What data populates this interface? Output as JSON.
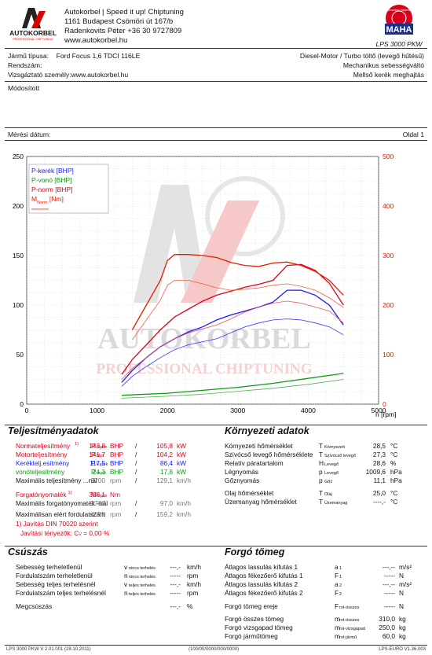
{
  "header": {
    "company_line1": "Autokorbel | Speed it up! Chiptuning",
    "company_line2": "1161 Budapest Csömöri út 167/b",
    "company_line3": "Radenkovits Péter +36 30 9727809",
    "company_line4": "www.autokorbel.hu",
    "logo_text": "AUTOKORBEL",
    "logo_sub": "PROFESSIONAL CHIPTUNING",
    "maha_ring": "Maschinenbau Haldenwang",
    "maha_text": "MAHA",
    "device": "LPS 3000 PKW"
  },
  "vehicle": {
    "type_label": "Jármű típusa:",
    "type_value": "Ford Focus 1,6 TDCI 116LE",
    "engine": "Diesel-Motor / Turbo töltő (levegő hűtésű)",
    "reg_label": "Rendszám:",
    "gearbox": "Mechanikus sebességváltó",
    "tester_label": "Vizsgáztató személy:",
    "tester_value": "www.autokorbel.hu",
    "drive": "Mellső kerék meghajtás",
    "modified": "Módosított",
    "date_label": "Mérési dátum:",
    "page": "Oldal 1"
  },
  "chart_data": {
    "type": "line",
    "x_unit": "n [rpm]",
    "xlim": [
      0,
      5000
    ],
    "ylim_left": [
      0,
      250
    ],
    "ylim_right": [
      0,
      500
    ],
    "x_ticks": [
      "0",
      "1000",
      "2000",
      "3000",
      "4000",
      "5000"
    ],
    "y_left_ticks": [
      "0",
      "50",
      "100",
      "150",
      "200",
      "250"
    ],
    "y_right_ticks": [
      "0",
      "100",
      "200",
      "300",
      "400",
      "500"
    ],
    "legend": [
      "P-kerék [BHP]",
      "P-vonó [BHP]",
      "P-norm [BHP]",
      "M",
      "Norm",
      " [Nm]"
    ],
    "series": [
      {
        "name": "P-kerék",
        "axis": "left",
        "color": "#1a1aff",
        "x": [
          1350,
          1500,
          1700,
          1900,
          2100,
          2300,
          2500,
          2700,
          2900,
          3100,
          3300,
          3500,
          3700,
          3900,
          4100,
          4300,
          4500
        ],
        "y": [
          22,
          34,
          47,
          58,
          66,
          73,
          78,
          85,
          90,
          94,
          98,
          103,
          115,
          115,
          110,
          100,
          80
        ]
      },
      {
        "name": "P-kerék run2",
        "axis": "left",
        "color": "#3333ff",
        "x": [
          1350,
          1500,
          1700,
          1900,
          2100,
          2300,
          2500,
          2700,
          2900,
          3100,
          3300,
          3500,
          3700,
          3900,
          4100,
          4300,
          4500
        ],
        "y": [
          18,
          28,
          38,
          47,
          55,
          60,
          63,
          66,
          72,
          78,
          82,
          85,
          86,
          85,
          82,
          78,
          70
        ]
      },
      {
        "name": "P-vonó",
        "axis": "left",
        "color": "#119a11",
        "x": [
          1350,
          2000,
          2500,
          3000,
          3500,
          4000,
          4500
        ],
        "y": [
          9,
          11,
          14,
          17,
          21,
          26,
          31
        ]
      },
      {
        "name": "P-vonó run2",
        "axis": "left",
        "color": "#4caf4c",
        "x": [
          1350,
          2000,
          2500,
          3000,
          3500,
          4000,
          4500
        ],
        "y": [
          6,
          8,
          10,
          13,
          16,
          20,
          25
        ]
      },
      {
        "name": "P-norm",
        "axis": "left",
        "color": "#e0001b",
        "x": [
          1350,
          1500,
          1700,
          1900,
          2100,
          2300,
          2500,
          2700,
          2900,
          3100,
          3300,
          3500,
          3700,
          3900,
          4100,
          4300,
          4500
        ],
        "y": [
          30,
          45,
          60,
          75,
          88,
          96,
          104,
          110,
          114,
          118,
          121,
          125,
          140,
          141,
          135,
          122,
          100
        ]
      },
      {
        "name": "P-norm run2",
        "axis": "left",
        "color": "#ee5555",
        "x": [
          1350,
          1500,
          1700,
          1900,
          2100,
          2300,
          2500,
          2700,
          2900,
          3100,
          3300,
          3500,
          3700,
          3900,
          4100,
          4300,
          4500
        ],
        "y": [
          25,
          36,
          47,
          58,
          66,
          72,
          76,
          80,
          86,
          93,
          98,
          102,
          104,
          102,
          98,
          94,
          82
        ]
      },
      {
        "name": "M Norm",
        "axis": "right",
        "color": "#e02000",
        "x": [
          1500,
          1700,
          1900,
          2000,
          2100,
          2300,
          2500,
          2700,
          2900,
          3100,
          3300,
          3500,
          3700,
          3900,
          4100,
          4300,
          4500
        ],
        "y": [
          150,
          200,
          250,
          290,
          302,
          302,
          300,
          296,
          286,
          280,
          278,
          285,
          287,
          280,
          268,
          250,
          220
        ]
      },
      {
        "name": "M Norm run2",
        "axis": "right",
        "color": "#f06040",
        "x": [
          1500,
          1700,
          1900,
          2000,
          2100,
          2300,
          2500,
          2700,
          2900,
          3100,
          3300,
          3500,
          3700,
          3900,
          4100,
          4300,
          4500
        ],
        "y": [
          130,
          170,
          210,
          240,
          250,
          250,
          243,
          235,
          230,
          232,
          235,
          240,
          243,
          238,
          230,
          215,
          195
        ]
      }
    ]
  },
  "perf": {
    "title": "Teljesítményadatok",
    "rows": [
      {
        "label": "Normateljesítmény",
        "note": "1)",
        "sym": "P",
        "sub": "Norm",
        "v1": "143,8",
        "u1": "BHP",
        "sep": "/",
        "v2": "105,8",
        "u2": "kW",
        "color": "red"
      },
      {
        "label": "Motorteljesítmény",
        "note": "",
        "sym": "P",
        "sub": "Mot",
        "v1": "141,7",
        "u1": "BHP",
        "sep": "/",
        "v2": "104,2",
        "u2": "kW",
        "color": "red"
      },
      {
        "label": "Keréktelj.esítmény",
        "note": "",
        "sym": "P",
        "sub": "Kerék",
        "v1": "117,5",
        "u1": "BHP",
        "sep": "/",
        "v2": "86,4",
        "u2": "kW",
        "color": "blue"
      },
      {
        "label": "vonóteljesítmény",
        "note": "",
        "sym": "P",
        "sub": "vonó",
        "v1": "24,3",
        "u1": "BHP",
        "sep": "/",
        "v2": "17,8",
        "u2": "kW",
        "color": "green"
      },
      {
        "label": "Maximális teljesítmény ...nál",
        "note": "",
        "sym": "",
        "sub": "",
        "v1": "3700",
        "u1": "rpm",
        "sep": "/",
        "v2": "129,1",
        "u2": "km/h",
        "color": "gray"
      },
      {
        "label": "Forgatónyomaték",
        "note": "1)",
        "sym": "M",
        "sub": "Norm",
        "v1": "308,1",
        "u1": "Nm",
        "sep": "",
        "v2": "",
        "u2": "",
        "color": "red"
      },
      {
        "label": "Maximális forgatónyomaték -nál",
        "note": "",
        "sym": "",
        "sub": "",
        "v1": "2780",
        "u1": "rpm",
        "sep": "/",
        "v2": "97,0",
        "u2": "km/h",
        "color": "gray"
      },
      {
        "label": "Maximálisan elért fordulatszám",
        "note": "",
        "sym": "",
        "sub": "",
        "v1": "4565",
        "u1": "rpm",
        "sep": "/",
        "v2": "159,2",
        "u2": "km/h",
        "color": "gray"
      }
    ],
    "footnote1": "1) Javítás DIN 70020 szerint",
    "footnote2": "Javítási tényezők: C",
    "footnote2_sub": "V",
    "footnote2_val": "=   0,00 %"
  },
  "env": {
    "title": "Környezeti adatok",
    "rows": [
      {
        "label": "Környezeti hőmérséklet",
        "sym": "T",
        "sub": "Környezeti",
        "v": "28,5",
        "u": "°C"
      },
      {
        "label": "Szívócső levegő hőmérséklete",
        "sym": "T",
        "sub": "Szívócső levegő",
        "v": "27,3",
        "u": "°C"
      },
      {
        "label": "Relatív páratartalom",
        "sym": "H",
        "sub": "Levegő",
        "v": "28,6",
        "u": "%"
      },
      {
        "label": "Légnyomás",
        "sym": "p",
        "sub": "Levegő",
        "v": "1009,6",
        "u": "hPa"
      },
      {
        "label": "Gőznyomás",
        "sym": "p",
        "sub": "Gőz",
        "v": "11,1",
        "u": "hPa"
      },
      {
        "label": "Olaj hőmérséklet",
        "sym": "T",
        "sub": "Olaj",
        "v": "25,0",
        "u": "°C"
      },
      {
        "label": "Üzemanyag hőmérséklet",
        "sym": "T",
        "sub": "Üzemanyag",
        "v": "----,-",
        "u": "°C"
      }
    ]
  },
  "coast": {
    "title": "Csúszás",
    "rows": [
      {
        "label": "Sebesség terheletlenül",
        "sym": "v",
        "sub": "nincs terhelés",
        "v": "---,-",
        "u": "km/h"
      },
      {
        "label": "Fordulatszám terheletlenül",
        "sym": "n",
        "sub": "nincs terhelés",
        "v": "-----",
        "u": "rpm"
      },
      {
        "label": "Sebesség teljes terhelésnél",
        "sym": "v",
        "sub": "teljes terhelés",
        "v": "---,-",
        "u": "km/h"
      },
      {
        "label": "Fordulatszám teljes terhelésnél",
        "sym": "n",
        "sub": "teljes terhelés",
        "v": "-----",
        "u": "rpm"
      },
      {
        "label": "Megcsúszás",
        "sym": "",
        "sub": "",
        "v": "---,-",
        "u": "%"
      }
    ]
  },
  "mass": {
    "title": "Forgó tömeg",
    "rows": [
      {
        "label": "Átlagos lassulás kifutás 1",
        "sym": "a",
        "sub": "1",
        "v": "---,--",
        "u": "m/s²"
      },
      {
        "label": "Átlagos fékezőerő kifutás 1",
        "sym": "F",
        "sub": "1",
        "v": "-----",
        "u": "N"
      },
      {
        "label": "Átlagos lassulás kifutás 2",
        "sym": "a",
        "sub": "2",
        "v": "---,--",
        "u": "m/s²"
      },
      {
        "label": "Átlagos fékezőerő kifutás 2",
        "sym": "F",
        "sub": "2",
        "v": "-----",
        "u": "N"
      },
      {
        "label": "Forgó tömeg ereje",
        "sym": "F",
        "sub": "rot-összes",
        "v": "-----",
        "u": "N"
      },
      {
        "label": "Forgó összes tömeg",
        "sym": "m",
        "sub": "rot-összes",
        "v": "310,0",
        "u": "kg"
      },
      {
        "label": "Forgó vizsgapad tömeg",
        "sym": "m",
        "sub": "rot-vizsgapad",
        "v": "250,0",
        "u": "kg"
      },
      {
        "label": "Forgó járműtömeg",
        "sym": "m",
        "sub": "rot-jármű",
        "v": "60,0",
        "u": "kg"
      }
    ]
  },
  "footer": {
    "left": "LPS 3000 PKW V 2.01.001 (28.10.2011)",
    "mid": "(100/00/0000/000/0000)",
    "right": "LPS-EURO V1.36.003"
  },
  "watermark": {
    "line1": "AUTOKORBEL",
    "line2": "PROFESSIONAL CHIPTUNING"
  }
}
